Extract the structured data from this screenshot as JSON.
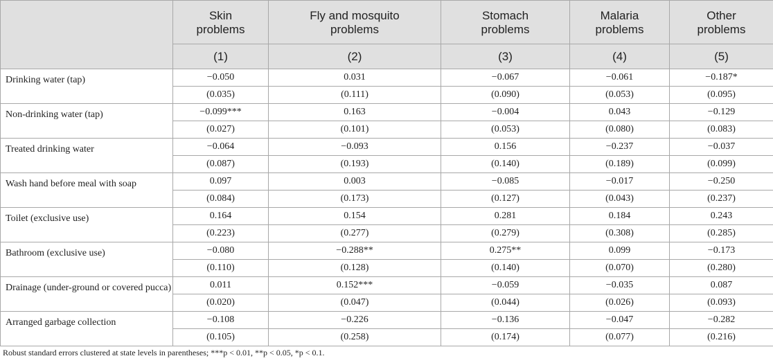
{
  "header": {
    "columns": [
      {
        "title": "Skin problems",
        "num": "(1)"
      },
      {
        "title": "Fly and mosquito problems",
        "num": "(2)"
      },
      {
        "title": "Stomach problems",
        "num": "(3)"
      },
      {
        "title": "Malaria problems",
        "num": "(4)"
      },
      {
        "title": "Other problems",
        "num": "(5)"
      }
    ]
  },
  "rows": [
    {
      "label": "Drinking water (tap)",
      "coef": [
        "−0.050",
        "0.031",
        "−0.067",
        "−0.061",
        "−0.187*"
      ],
      "se": [
        "(0.035)",
        "(0.111)",
        "(0.090)",
        "(0.053)",
        "(0.095)"
      ]
    },
    {
      "label": "Non-drinking water (tap)",
      "coef": [
        "−0.099***",
        "0.163",
        "−0.004",
        "0.043",
        "−0.129"
      ],
      "se": [
        "(0.027)",
        "(0.101)",
        "(0.053)",
        "(0.080)",
        "(0.083)"
      ]
    },
    {
      "label": "Treated drinking water",
      "coef": [
        "−0.064",
        "−0.093",
        "0.156",
        "−0.237",
        "−0.037"
      ],
      "se": [
        "(0.087)",
        "(0.193)",
        "(0.140)",
        "(0.189)",
        "(0.099)"
      ]
    },
    {
      "label": "Wash hand before meal with soap",
      "coef": [
        "0.097",
        "0.003",
        "−0.085",
        "−0.017",
        "−0.250"
      ],
      "se": [
        "(0.084)",
        "(0.173)",
        "(0.127)",
        "(0.043)",
        "(0.237)"
      ]
    },
    {
      "label": "Toilet (exclusive use)",
      "coef": [
        "0.164",
        "0.154",
        "0.281",
        "0.184",
        "0.243"
      ],
      "se": [
        "(0.223)",
        "(0.277)",
        "(0.279)",
        "(0.308)",
        "(0.285)"
      ]
    },
    {
      "label": "Bathroom (exclusive use)",
      "coef": [
        "−0.080",
        "−0.288**",
        "0.275**",
        "0.099",
        "−0.173"
      ],
      "se": [
        "(0.110)",
        "(0.128)",
        "(0.140)",
        "(0.070)",
        "(0.280)"
      ]
    },
    {
      "label": "Drainage (under-ground or covered pucca)",
      "coef": [
        "0.011",
        "0.152***",
        "−0.059",
        "−0.035",
        "0.087"
      ],
      "se": [
        "(0.020)",
        "(0.047)",
        "(0.044)",
        "(0.026)",
        "(0.093)"
      ]
    },
    {
      "label": "Arranged garbage collection",
      "coef": [
        "−0.108",
        "−0.226",
        "−0.136",
        "−0.047",
        "−0.282"
      ],
      "se": [
        "(0.105)",
        "(0.258)",
        "(0.174)",
        "(0.077)",
        "(0.216)"
      ]
    }
  ],
  "note": "Robust standard errors clustered at state levels in parentheses; ***p < 0.01, **p < 0.05, *p < 0.1."
}
